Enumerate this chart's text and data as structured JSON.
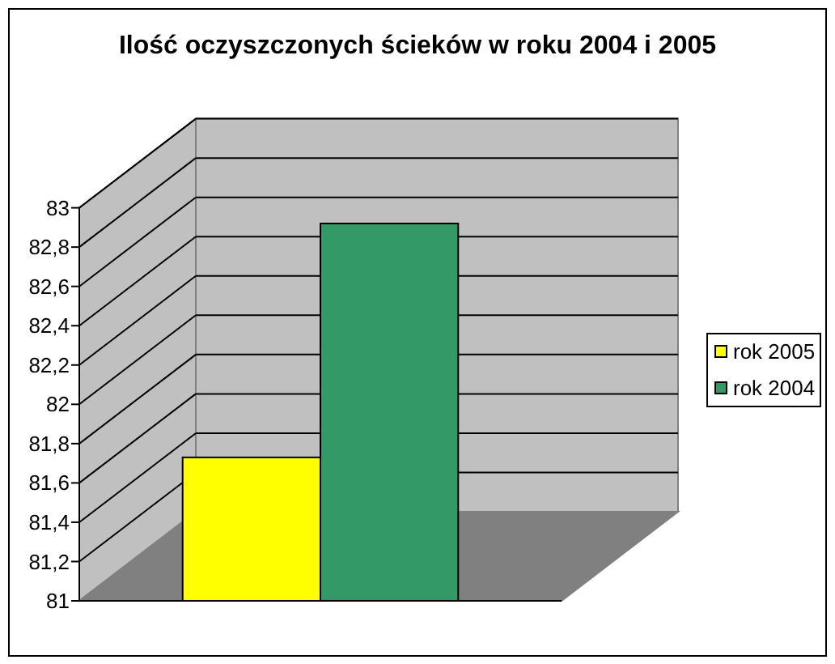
{
  "chart_data": {
    "type": "bar",
    "title": "Ilość oczyszczonych ścieków w roku 2004 i 2005",
    "categories": [
      null
    ],
    "series": [
      {
        "name": "rok 2005",
        "color": "#ffff00",
        "values": [
          81.73
        ]
      },
      {
        "name": "rok 2004",
        "color": "#339966",
        "values": [
          82.92
        ]
      }
    ],
    "ylim": [
      81,
      83
    ],
    "yticks": [
      81,
      {
        "value": 81.2,
        "label": "81,2"
      },
      {
        "value": 81.4,
        "label": "81,4"
      },
      {
        "value": 81.6,
        "label": "81,6"
      },
      {
        "value": 81.8,
        "label": "81,8"
      },
      82,
      {
        "value": 82.2,
        "label": "82,2"
      },
      {
        "value": 82.4,
        "label": "82,4"
      },
      {
        "value": 82.6,
        "label": "82,6"
      },
      {
        "value": 82.8,
        "label": "82,8"
      },
      83
    ],
    "grid": "y",
    "legend": "right"
  }
}
